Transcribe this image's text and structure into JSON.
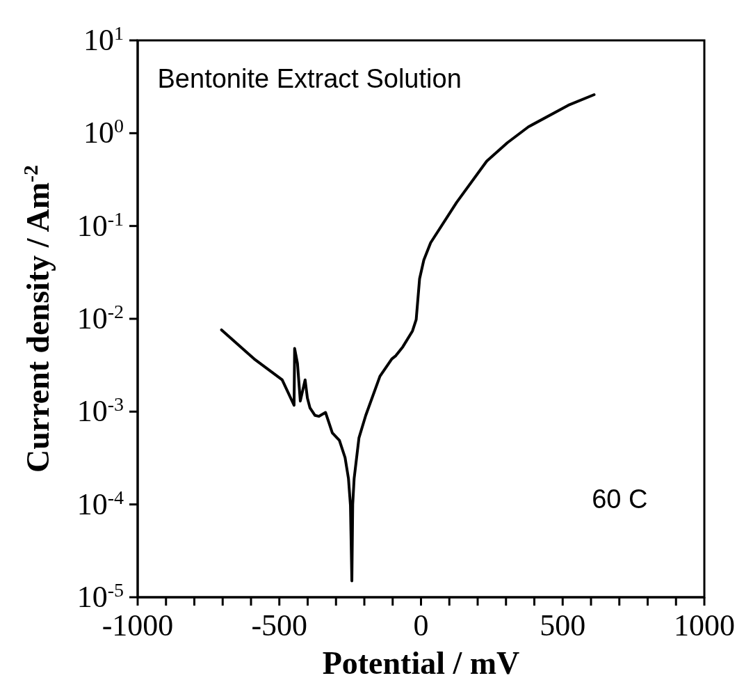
{
  "chart_data": {
    "type": "line",
    "xlabel": "Potential / mV",
    "ylabel": "Current density / Am$^{-2}$",
    "log": "y",
    "marker": "none",
    "line_style": "solid",
    "annotations": [
      "Bentonite Extract Solution",
      "60 C"
    ],
    "xlim": [
      -1000,
      1000
    ],
    "xticks": [
      -1000,
      {
        "value": -900,
        "label": null
      },
      {
        "value": -800,
        "label": null
      },
      {
        "value": -700,
        "label": null
      },
      {
        "value": -600,
        "label": null
      },
      -500,
      {
        "value": -400,
        "label": null
      },
      {
        "value": -300,
        "label": null
      },
      {
        "value": -200,
        "label": null
      },
      {
        "value": -100,
        "label": null
      },
      0,
      {
        "value": 100,
        "label": null
      },
      {
        "value": 200,
        "label": null
      },
      {
        "value": 300,
        "label": null
      },
      {
        "value": 400,
        "label": null
      },
      500,
      {
        "value": 600,
        "label": null
      },
      {
        "value": 700,
        "label": null
      },
      {
        "value": 800,
        "label": null
      },
      {
        "value": 900,
        "label": null
      },
      1000
    ],
    "ylim": [
      1e-05,
      10
    ],
    "yticks": [
      {
        "value": 1e-05,
        "label": "10$^{-5}$"
      },
      {
        "value": 0.0001,
        "label": "10$^{-4}$"
      },
      {
        "value": 0.001,
        "label": "10$^{-3}$"
      },
      {
        "value": 0.01,
        "label": "10$^{-2}$"
      },
      {
        "value": 0.1,
        "label": "10$^{-1}$"
      },
      {
        "value": 1,
        "label": "10$^{0}$"
      },
      {
        "value": 10,
        "label": "10$^{1}$"
      }
    ],
    "series": [
      {
        "color": "#000000",
        "x": [
          -704,
          -589,
          -490,
          -448,
          -446,
          -436,
          -426,
          -409,
          -401,
          -392,
          -374,
          -360,
          -337,
          -325,
          -313,
          -288,
          -268,
          -256,
          -249,
          -244,
          -241,
          -236,
          -219,
          -195,
          -145,
          -103,
          -89,
          -64,
          -30,
          -17,
          -5,
          10,
          34,
          126,
          232,
          305,
          379,
          520,
          611
        ],
        "values": [
          0.0076,
          0.0037,
          0.0022,
          0.00117,
          0.0048,
          0.0033,
          0.0013,
          0.0022,
          0.0014,
          0.0011,
          0.00091,
          0.00089,
          0.00098,
          0.00076,
          0.00059,
          0.00049,
          0.00032,
          0.00019,
          9.8e-05,
          1.5e-05,
          0.0001,
          0.00019,
          0.00052,
          0.00091,
          0.0024,
          0.0037,
          0.004,
          0.005,
          0.0074,
          0.0098,
          0.027,
          0.043,
          0.066,
          0.18,
          0.5,
          0.79,
          1.17,
          2.0,
          2.6
        ]
      }
    ]
  }
}
